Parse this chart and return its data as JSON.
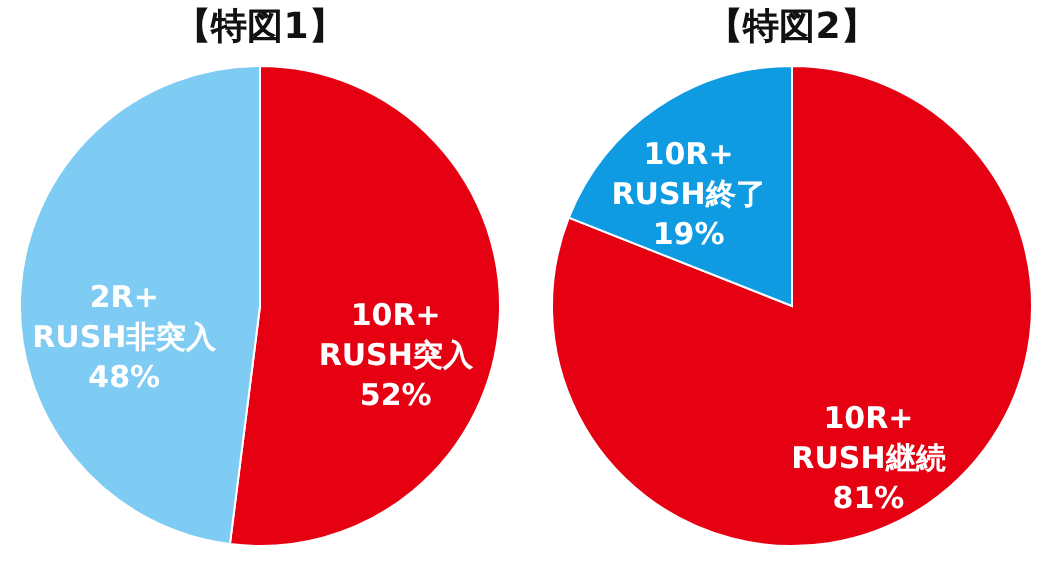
{
  "chart_data": [
    {
      "type": "pie",
      "title": "【特図1】",
      "categories": [
        "10R+\nRUSH突入",
        "2R+\nRUSH非突入"
      ],
      "values": [
        52,
        48
      ],
      "colors": [
        "#e50012",
        "#7ecbf3"
      ],
      "value_labels": [
        "52%",
        "48%"
      ]
    },
    {
      "type": "pie",
      "title": "【特図2】",
      "categories": [
        "10R+\nRUSH継続",
        "10R+\nRUSH終了"
      ],
      "values": [
        81,
        19
      ],
      "colors": [
        "#e50012",
        "#0f9be2"
      ],
      "value_labels": [
        "81%",
        "19%"
      ]
    }
  ]
}
